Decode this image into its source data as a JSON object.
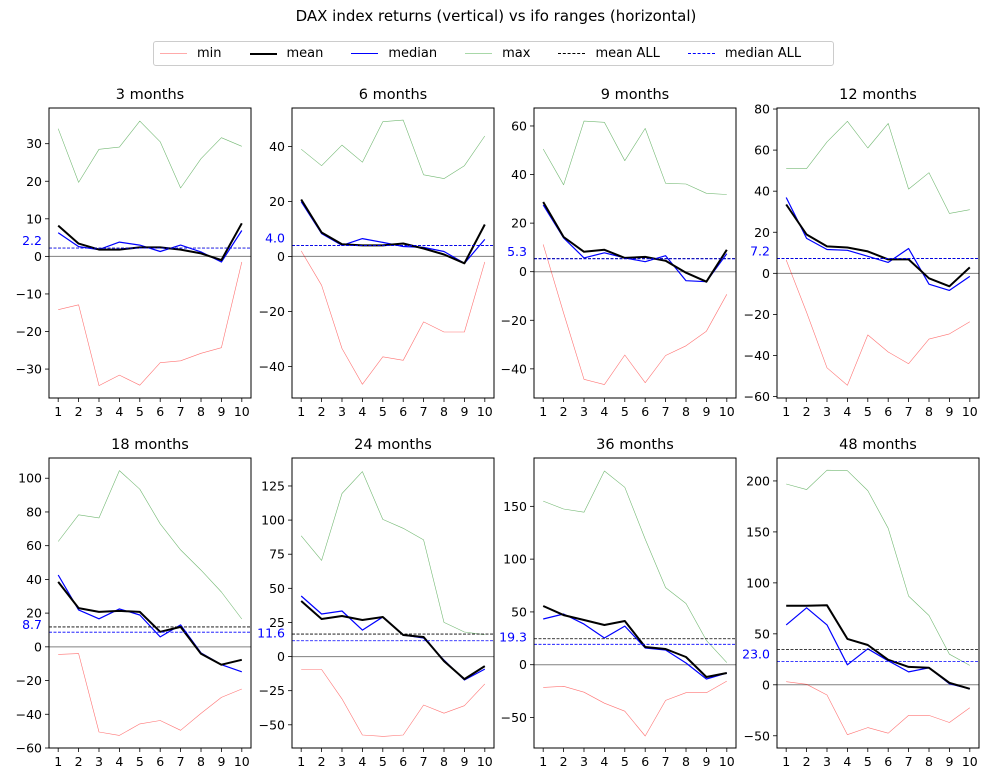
{
  "chart_data": {
    "type": "line",
    "title": "DAX index returns (vertical) vs ifo ranges (horizontal)",
    "legend": {
      "placement": "top-center",
      "entries": [
        {
          "name": "min",
          "color": "#ff0000",
          "style": "solid-thin"
        },
        {
          "name": "mean",
          "color": "#000000",
          "style": "solid-thick"
        },
        {
          "name": "median",
          "color": "#0000ff",
          "style": "solid"
        },
        {
          "name": "max",
          "color": "#008000",
          "style": "solid-thin"
        },
        {
          "name": "mean ALL",
          "color": "#000000",
          "style": "dashed"
        },
        {
          "name": "median ALL",
          "color": "#0000ff",
          "style": "dashed"
        }
      ]
    },
    "x": [
      1,
      2,
      3,
      4,
      5,
      6,
      7,
      8,
      9,
      10
    ],
    "xlim": [
      0.55,
      10.45
    ],
    "zero_line": true,
    "panels": [
      {
        "title": "3 months",
        "ylim": [
          -37.7,
          39.5
        ],
        "yticks": [
          -30,
          -20,
          -10,
          0,
          10,
          20,
          30
        ],
        "mean_all": 2.2,
        "median_all": 2.2,
        "median_all_label": "2.2",
        "series": {
          "min": [
            -14.2,
            -12.9,
            -34.4,
            -31.6,
            -34.3,
            -28.3,
            -27.8,
            -25.8,
            -24.3,
            -1.5
          ],
          "mean": [
            8.2,
            3.4,
            1.8,
            1.8,
            2.4,
            2.4,
            1.8,
            0.8,
            -1.0,
            8.8
          ],
          "median": [
            6.3,
            2.6,
            1.8,
            3.8,
            3.0,
            1.3,
            3.0,
            1.2,
            -1.5,
            6.9
          ],
          "max": [
            34.0,
            19.7,
            28.5,
            29.1,
            36.0,
            30.5,
            18.2,
            26.0,
            31.6,
            29.3
          ]
        }
      },
      {
        "title": "6 months",
        "ylim": [
          -51.5,
          54
        ],
        "yticks": [
          -40,
          -20,
          0,
          20,
          40
        ],
        "mean_all": 4.0,
        "median_all": 4.0,
        "median_all_label": "4.0",
        "series": {
          "min": [
            2.0,
            -10.5,
            -33.5,
            -46.5,
            -36.5,
            -37.8,
            -23.8,
            -27.5,
            -27.5,
            -2.0
          ],
          "mean": [
            20.7,
            8.7,
            4.4,
            4.0,
            4.0,
            4.7,
            2.9,
            0.7,
            -2.5,
            11.6
          ],
          "median": [
            19.9,
            8.3,
            4.0,
            6.5,
            5.1,
            3.6,
            3.3,
            1.8,
            -2.5,
            6.2
          ],
          "max": [
            39.0,
            33.0,
            40.5,
            34.3,
            49.0,
            49.6,
            29.7,
            28.3,
            33.0,
            43.8
          ]
        }
      },
      {
        "title": "9 months",
        "ylim": [
          -52,
          67.4
        ],
        "yticks": [
          -40,
          -20,
          0,
          20,
          40,
          60
        ],
        "mean_all": 5.4,
        "median_all": 5.3,
        "median_all_label": "5.3",
        "series": {
          "min": [
            11.2,
            -17.0,
            -44.3,
            -46.5,
            -34.3,
            -45.7,
            -34.5,
            -30.5,
            -24.5,
            -9.3
          ],
          "mean": [
            28.7,
            14.3,
            8.2,
            9.0,
            5.7,
            6.1,
            4.5,
            -0.4,
            -4.1,
            9.0
          ],
          "median": [
            27.5,
            13.9,
            5.7,
            7.8,
            5.7,
            4.1,
            6.6,
            -3.7,
            -4.1,
            7.4
          ],
          "max": [
            50.5,
            35.8,
            62.0,
            61.5,
            45.7,
            59.0,
            36.4,
            36.1,
            32.3,
            31.8
          ]
        }
      },
      {
        "title": "12 months",
        "ylim": [
          -60.7,
          80.5
        ],
        "yticks": [
          -60,
          -40,
          -20,
          0,
          20,
          40,
          60,
          80
        ],
        "mean_all": 7.3,
        "median_all": 7.2,
        "median_all_label": "7.2",
        "series": {
          "min": [
            6.5,
            -19.0,
            -46.0,
            -54.5,
            -30.0,
            -38.3,
            -44.0,
            -32.0,
            -29.5,
            -23.6
          ],
          "mean": [
            33.5,
            18.9,
            13.1,
            12.6,
            10.7,
            6.8,
            6.8,
            -2.4,
            -6.3,
            2.9
          ],
          "median": [
            36.9,
            17.0,
            11.6,
            11.2,
            8.3,
            5.3,
            12.1,
            -5.3,
            -8.3,
            -1.5
          ],
          "max": [
            51.0,
            51.0,
            64.0,
            74.0,
            61.0,
            73.0,
            41.0,
            49.0,
            29.2,
            31.0
          ]
        }
      },
      {
        "title": "18 months",
        "ylim": [
          -60,
          112
        ],
        "yticks": [
          -60,
          -40,
          -20,
          0,
          20,
          40,
          60,
          80,
          100
        ],
        "mean_all": 11.8,
        "median_all": 8.7,
        "median_all_label": "8.7",
        "series": {
          "min": [
            -4.5,
            -4.0,
            -50.5,
            -52.5,
            -45.7,
            -43.7,
            -49.5,
            -39.5,
            -30.0,
            -25.0
          ],
          "mean": [
            38.5,
            23.0,
            20.7,
            21.3,
            20.7,
            8.9,
            11.8,
            -4.1,
            -10.6,
            -7.7
          ],
          "median": [
            42.6,
            21.9,
            16.6,
            22.5,
            18.9,
            5.9,
            13.0,
            -3.6,
            -10.6,
            -14.8
          ],
          "max": [
            62.5,
            78.3,
            76.5,
            104.5,
            93.5,
            73.0,
            57.5,
            45.5,
            32.5,
            16.5
          ]
        }
      },
      {
        "title": "24 months",
        "ylim": [
          -67,
          145.5
        ],
        "yticks": [
          -50,
          -25,
          0,
          25,
          50,
          75,
          100,
          125
        ],
        "mean_all": 16.5,
        "median_all": 11.6,
        "median_all_label": "11.6",
        "series": {
          "min": [
            -9.5,
            -9.5,
            -31.0,
            -57.5,
            -58.5,
            -57.5,
            -35.5,
            -41.5,
            -36.0,
            -20.0
          ],
          "mean": [
            40.7,
            27.5,
            29.7,
            26.8,
            29.0,
            15.8,
            14.3,
            -3.3,
            -16.5,
            -7.0
          ],
          "median": [
            44.4,
            31.2,
            33.4,
            19.4,
            29.0,
            15.8,
            13.6,
            -2.6,
            -17.2,
            -9.2
          ],
          "max": [
            88.5,
            70.5,
            119.5,
            135.5,
            100.5,
            94.0,
            85.5,
            25.0,
            18.0,
            16.0
          ]
        }
      },
      {
        "title": "36 months",
        "ylim": [
          -78.9,
          195.8
        ],
        "yticks": [
          -50,
          0,
          50,
          100,
          150
        ],
        "mean_all": 24.6,
        "median_all": 19.3,
        "median_all_label": "19.3",
        "series": {
          "min": [
            -21.5,
            -20.5,
            -26.0,
            -36.5,
            -44.0,
            -67.5,
            -33.8,
            -26.5,
            -26.5,
            -15.5
          ],
          "mean": [
            55.6,
            47.0,
            42.3,
            37.6,
            41.4,
            16.8,
            14.9,
            7.3,
            -11.6,
            -7.9
          ],
          "median": [
            43.3,
            48.0,
            38.5,
            25.3,
            36.6,
            15.8,
            13.9,
            1.6,
            -13.5,
            -7.9
          ],
          "max": [
            155.0,
            147.5,
            144.5,
            183.5,
            168.0,
            119.0,
            73.0,
            58.0,
            23.0,
            2.0
          ]
        }
      },
      {
        "title": "48 months",
        "ylim": [
          -62,
          222.5
        ],
        "yticks": [
          -50,
          0,
          50,
          100,
          150,
          200
        ],
        "mean_all": 34.6,
        "median_all": 23.0,
        "median_all_label": "23.0",
        "series": {
          "min": [
            3.0,
            0.5,
            -10.0,
            -49.0,
            -42.0,
            -47.5,
            -30.0,
            -30.0,
            -37.0,
            -22.5
          ],
          "mean": [
            77.5,
            77.5,
            78.0,
            45.0,
            39.0,
            24.5,
            17.6,
            16.7,
            2.0,
            -3.9
          ],
          "median": [
            58.8,
            75.5,
            58.8,
            19.6,
            35.3,
            23.5,
            12.7,
            16.7,
            1.0,
            -3.9
          ],
          "max": [
            197.0,
            191.5,
            210.5,
            210.0,
            190.5,
            153.5,
            87.0,
            68.0,
            30.0,
            19.0
          ]
        }
      }
    ]
  }
}
